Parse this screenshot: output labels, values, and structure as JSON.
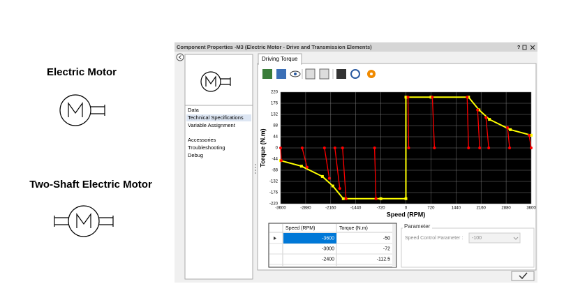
{
  "palette": {
    "items": [
      "Electric Motor",
      "Two-Shaft Electric Motor"
    ]
  },
  "dialog": {
    "title": "Component Properties -M3 (Electric Motor - Drive and Transmission Elements)"
  },
  "nav": {
    "items": [
      "Data",
      "Technical Specifications",
      "Variable Assignment",
      "Accessories",
      "Troubleshooting",
      "Debug"
    ],
    "selected": 1
  },
  "tab": "Driving Torque",
  "table": {
    "columns": [
      "Speed (RPM)",
      "Torque (N.m)"
    ],
    "rows": [
      [
        -3600,
        -50
      ],
      [
        -3000,
        -72
      ],
      [
        -2400,
        -112.5
      ]
    ],
    "selected_row": 0
  },
  "parameter": {
    "title": "Parameter",
    "label": "Speed Control Parameter :",
    "value": "-100"
  },
  "chart_data": {
    "type": "line",
    "xlabel": "Speed (RPM)",
    "ylabel": "Torque (N.m)",
    "xlim": [
      -3600,
      3600
    ],
    "ylim": [
      -220,
      220
    ],
    "xticks": [
      -3600,
      -2880,
      -2160,
      -1440,
      -720,
      0,
      720,
      1440,
      2160,
      2880,
      3600
    ],
    "yticks": [
      220,
      176,
      132,
      88,
      44,
      0,
      -44,
      -88,
      -132,
      -176,
      -220
    ],
    "grid": true,
    "background": "#000000",
    "grid_color": "#7a7a7a",
    "series": [
      {
        "color": "#ffff00",
        "marker": "square",
        "x": [
          -3600,
          -3000,
          -2400,
          -2100,
          -1800,
          -720,
          0,
          0,
          720,
          1800,
          2100,
          2400,
          3000,
          3600
        ],
        "values": [
          -50,
          -72,
          -112.5,
          -150,
          -200,
          -200,
          -200,
          200,
          200,
          200,
          150,
          112.5,
          72,
          50
        ]
      },
      {
        "color": "#ff0000",
        "marker": "circle",
        "x": [
          -3600,
          -3580
        ],
        "values": [
          0,
          -50
        ]
      },
      {
        "color": "#ff0000",
        "marker": "circle",
        "x": [
          -2980,
          -2840
        ],
        "values": [
          0,
          -76
        ]
      },
      {
        "color": "#ff0000",
        "marker": "circle",
        "x": [
          -2340,
          -2200
        ],
        "values": [
          0,
          -120
        ]
      },
      {
        "color": "#ff0000",
        "marker": "circle",
        "x": [
          -2040,
          -1900
        ],
        "values": [
          0,
          -160
        ]
      },
      {
        "color": "#ff0000",
        "marker": "circle",
        "x": [
          -1820,
          -1720
        ],
        "values": [
          0,
          -200
        ]
      },
      {
        "color": "#ff0000",
        "marker": "circle",
        "x": [
          -900,
          -860
        ],
        "values": [
          0,
          -200
        ]
      },
      {
        "color": "#ff0000",
        "marker": "circle",
        "x": [
          80,
          60
        ],
        "values": [
          0,
          200
        ]
      },
      {
        "color": "#ff0000",
        "marker": "circle",
        "x": [
          820,
          760
        ],
        "values": [
          0,
          200
        ]
      },
      {
        "color": "#ff0000",
        "marker": "circle",
        "x": [
          1800,
          1760
        ],
        "values": [
          0,
          200
        ]
      },
      {
        "color": "#ff0000",
        "marker": "circle",
        "x": [
          2120,
          2060
        ],
        "values": [
          0,
          150
        ]
      },
      {
        "color": "#ff0000",
        "marker": "circle",
        "x": [
          2380,
          2300
        ],
        "values": [
          0,
          120
        ]
      },
      {
        "color": "#ff0000",
        "marker": "circle",
        "x": [
          2980,
          2920
        ],
        "values": [
          0,
          80
        ]
      },
      {
        "color": "#ff0000",
        "marker": "circle",
        "x": [
          3600,
          3540
        ],
        "values": [
          0,
          50
        ]
      }
    ]
  }
}
